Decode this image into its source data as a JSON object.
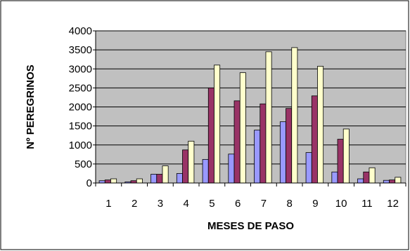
{
  "chart_data": {
    "type": "bar",
    "title": "",
    "xlabel": "MESES DE PASO",
    "ylabel": "Nº PEREGRINOS",
    "categories": [
      "1",
      "2",
      "3",
      "4",
      "5",
      "6",
      "7",
      "8",
      "9",
      "10",
      "11",
      "12"
    ],
    "ylim": [
      0,
      4000
    ],
    "yticks": [
      "0",
      "500",
      "1000",
      "1500",
      "2000",
      "2500",
      "3000",
      "3500",
      "4000"
    ],
    "grid": true,
    "legend": "none",
    "series": [
      {
        "color": "#9999ff",
        "values": [
          60,
          30,
          230,
          250,
          620,
          760,
          1390,
          1610,
          800,
          290,
          110,
          70
        ]
      },
      {
        "color": "#993366",
        "values": [
          80,
          60,
          230,
          870,
          2500,
          2160,
          2080,
          1960,
          2290,
          1150,
          290,
          80
        ]
      },
      {
        "color": "#ffffcc",
        "values": [
          110,
          110,
          450,
          1100,
          3100,
          2900,
          3450,
          3560,
          3070,
          1420,
          400,
          150
        ]
      }
    ],
    "colors": {
      "plot_background": "#c0c0c0",
      "gridline": "#000000"
    }
  }
}
